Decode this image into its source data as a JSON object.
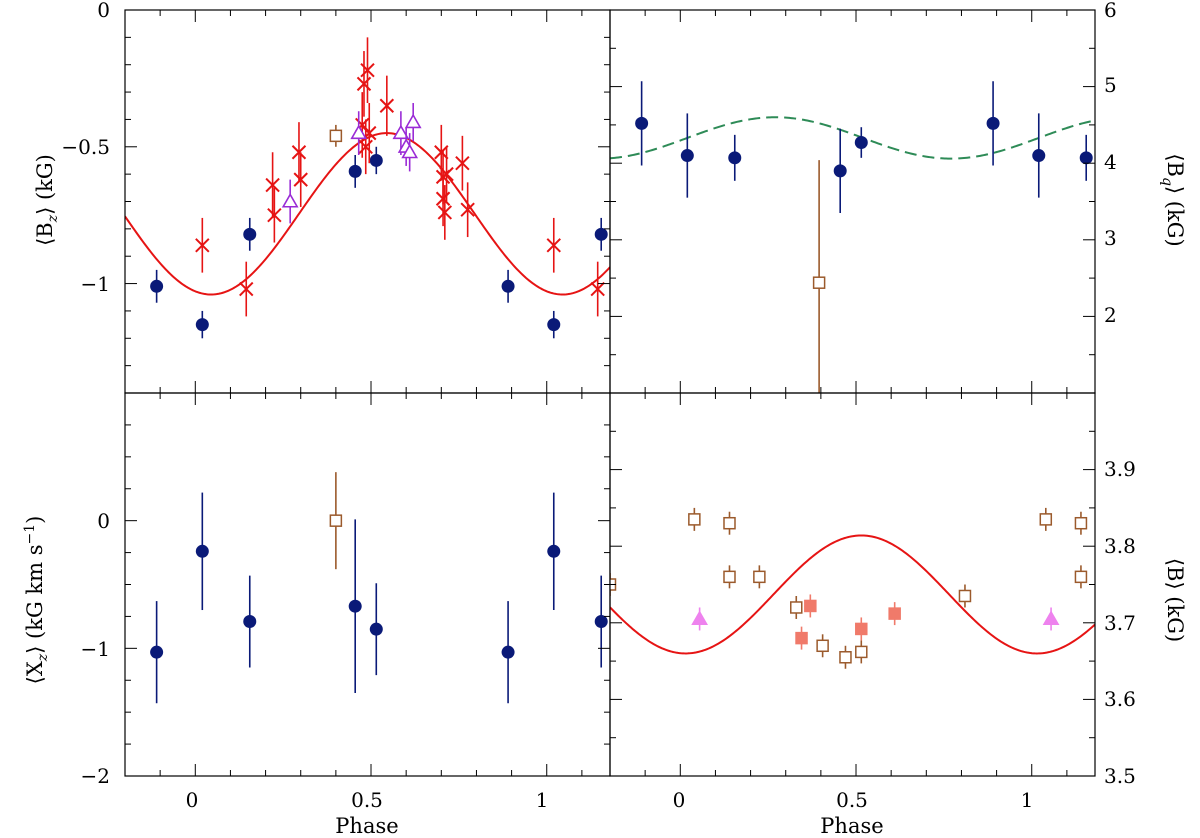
{
  "chart_data": [
    {
      "id": "bz",
      "type": "scatter",
      "ylabel_main": "⟨B",
      "ylabel_sub": "z",
      "ylabel_tail": "⟩ (kG)",
      "ylabel_side": "left",
      "xlim": [
        -0.2,
        1.18
      ],
      "ylim": [
        -1.4,
        0.0
      ],
      "yticks": [
        0,
        -0.5,
        -1
      ],
      "ytick_labels": [
        "0",
        "−0.5",
        "−1"
      ],
      "yminor_step": 0.1,
      "series": [
        {
          "name": "filled circles",
          "marker": "circle",
          "color": "#0a1a78",
          "points": [
            {
              "x": -0.11,
              "y": -1.01,
              "err": 0.06
            },
            {
              "x": 0.02,
              "y": -1.15,
              "err": 0.05
            },
            {
              "x": 0.155,
              "y": -0.82,
              "err": 0.06
            },
            {
              "x": 0.455,
              "y": -0.59,
              "err": 0.06
            },
            {
              "x": 0.515,
              "y": -0.55,
              "err": 0.05
            },
            {
              "x": 0.89,
              "y": -1.01,
              "err": 0.06
            },
            {
              "x": 1.02,
              "y": -1.15,
              "err": 0.05
            },
            {
              "x": 1.155,
              "y": -0.82,
              "err": 0.06
            }
          ]
        },
        {
          "name": "crosses",
          "marker": "cross",
          "color": "#e61414",
          "points": [
            {
              "x": 0.02,
              "y": -0.86,
              "err": 0.1
            },
            {
              "x": 0.145,
              "y": -1.02,
              "err": 0.1
            },
            {
              "x": 0.22,
              "y": -0.64,
              "err": 0.12
            },
            {
              "x": 0.225,
              "y": -0.75,
              "err": 0.1
            },
            {
              "x": 0.295,
              "y": -0.52,
              "err": 0.11
            },
            {
              "x": 0.3,
              "y": -0.62,
              "err": 0.1
            },
            {
              "x": 0.475,
              "y": -0.42,
              "err": 0.12
            },
            {
              "x": 0.48,
              "y": -0.27,
              "err": 0.12
            },
            {
              "x": 0.485,
              "y": -0.5,
              "err": 0.1
            },
            {
              "x": 0.49,
              "y": -0.22,
              "err": 0.12
            },
            {
              "x": 0.495,
              "y": -0.45,
              "err": 0.11
            },
            {
              "x": 0.545,
              "y": -0.35,
              "err": 0.11
            },
            {
              "x": 0.7,
              "y": -0.52,
              "err": 0.1
            },
            {
              "x": 0.705,
              "y": -0.61,
              "err": 0.1
            },
            {
              "x": 0.705,
              "y": -0.69,
              "err": 0.1
            },
            {
              "x": 0.71,
              "y": -0.74,
              "err": 0.1
            },
            {
              "x": 0.715,
              "y": -0.6,
              "err": 0.1
            },
            {
              "x": 0.76,
              "y": -0.56,
              "err": 0.1
            },
            {
              "x": 0.775,
              "y": -0.73,
              "err": 0.1
            },
            {
              "x": 1.02,
              "y": -0.86,
              "err": 0.1
            },
            {
              "x": 1.145,
              "y": -1.02,
              "err": 0.1
            }
          ]
        },
        {
          "name": "open triangles",
          "marker": "triangle-open",
          "color": "#9a2bd6",
          "points": [
            {
              "x": 0.27,
              "y": -0.7,
              "err": 0.08
            },
            {
              "x": 0.465,
              "y": -0.45,
              "err": 0.08
            },
            {
              "x": 0.585,
              "y": -0.45,
              "err": 0.08
            },
            {
              "x": 0.6,
              "y": -0.5,
              "err": 0.07
            },
            {
              "x": 0.61,
              "y": -0.52,
              "err": 0.07
            },
            {
              "x": 0.62,
              "y": -0.41,
              "err": 0.07
            }
          ]
        },
        {
          "name": "open squares",
          "marker": "square-open",
          "color": "#9b5a2c",
          "points": [
            {
              "x": 0.4,
              "y": -0.46,
              "err": 0.04
            }
          ]
        }
      ],
      "curve": {
        "color": "#e61414",
        "dashed": false,
        "mean": -0.745,
        "amp": 0.295,
        "phase0": 0.045
      }
    },
    {
      "id": "bq",
      "type": "scatter",
      "ylabel_main": "⟨B",
      "ylabel_sub": "q",
      "ylabel_tail": "⟩ (kG)",
      "ylabel_side": "right",
      "xlim": [
        -0.2,
        1.18
      ],
      "ylim": [
        1.0,
        6.0
      ],
      "yticks": [
        2,
        3,
        4,
        5,
        6
      ],
      "ytick_labels": [
        "2",
        "3",
        "4",
        "5",
        "6"
      ],
      "yminor_step": 0.5,
      "series": [
        {
          "name": "filled circles",
          "marker": "circle",
          "color": "#0a1a78",
          "points": [
            {
              "x": -0.11,
              "y": 4.52,
              "err": 0.55
            },
            {
              "x": 0.02,
              "y": 4.1,
              "err": 0.55
            },
            {
              "x": 0.155,
              "y": 4.07,
              "err": 0.3
            },
            {
              "x": 0.455,
              "y": 3.9,
              "err": 0.55
            },
            {
              "x": 0.515,
              "y": 4.27,
              "err": 0.2
            },
            {
              "x": 0.89,
              "y": 4.52,
              "err": 0.55
            },
            {
              "x": 1.02,
              "y": 4.1,
              "err": 0.55
            },
            {
              "x": 1.155,
              "y": 4.07,
              "err": 0.3
            }
          ]
        },
        {
          "name": "open squares",
          "marker": "square-open",
          "color": "#9b5a2c",
          "points": [
            {
              "x": 0.395,
              "y": 2.44,
              "err": 1.6
            }
          ]
        }
      ],
      "curve": {
        "color": "#2e8b57",
        "dashed": true,
        "mean": 4.33,
        "amp": 0.27,
        "phase0": 0.77
      }
    },
    {
      "id": "xz",
      "type": "scatter",
      "ylabel_main": "⟨X",
      "ylabel_sub": "z",
      "ylabel_tail": "⟩ (kG km s",
      "ylabel_sup": "−1",
      "ylabel_end": ")",
      "ylabel_side": "left",
      "xlim": [
        -0.2,
        1.18
      ],
      "ylim": [
        -2.0,
        1.0
      ],
      "yticks": [
        0,
        -1,
        -2
      ],
      "ytick_labels": [
        "0",
        "−1",
        "−2"
      ],
      "yminor_step": 0.25,
      "series": [
        {
          "name": "filled circles",
          "marker": "circle",
          "color": "#0a1a78",
          "points": [
            {
              "x": -0.11,
              "y": -1.03,
              "err": 0.4
            },
            {
              "x": 0.02,
              "y": -0.24,
              "err": 0.46
            },
            {
              "x": 0.155,
              "y": -0.79,
              "err": 0.36
            },
            {
              "x": 0.455,
              "y": -0.67,
              "err": 0.68
            },
            {
              "x": 0.515,
              "y": -0.85,
              "err": 0.36
            },
            {
              "x": 0.89,
              "y": -1.03,
              "err": 0.4
            },
            {
              "x": 1.02,
              "y": -0.24,
              "err": 0.46
            },
            {
              "x": 1.155,
              "y": -0.79,
              "err": 0.36
            }
          ]
        },
        {
          "name": "open squares",
          "marker": "square-open",
          "color": "#9b5a2c",
          "points": [
            {
              "x": 0.4,
              "y": 0.0,
              "err": 0.38
            }
          ]
        }
      ]
    },
    {
      "id": "bmod",
      "type": "scatter",
      "ylabel_main": "⟨B⟩ (kG)",
      "ylabel_side": "right",
      "xlim": [
        -0.2,
        1.18
      ],
      "ylim": [
        3.5,
        4.0
      ],
      "yticks": [
        3.5,
        3.6,
        3.7,
        3.8,
        3.9
      ],
      "ytick_labels": [
        "3.5",
        "3.6",
        "3.7",
        "3.8",
        "3.9"
      ],
      "yminor_step": 0.05,
      "series": [
        {
          "name": "open squares",
          "marker": "square-open",
          "color": "#9b5a2c",
          "points": [
            {
              "x": -0.2,
              "y": 3.75,
              "err": 0.015
            },
            {
              "x": 0.04,
              "y": 3.835,
              "err": 0.015
            },
            {
              "x": 0.14,
              "y": 3.83,
              "err": 0.015
            },
            {
              "x": 0.14,
              "y": 3.76,
              "err": 0.015
            },
            {
              "x": 0.225,
              "y": 3.76,
              "err": 0.015
            },
            {
              "x": 0.33,
              "y": 3.72,
              "err": 0.015
            },
            {
              "x": 0.405,
              "y": 3.67,
              "err": 0.015
            },
            {
              "x": 0.47,
              "y": 3.655,
              "err": 0.015
            },
            {
              "x": 0.515,
              "y": 3.662,
              "err": 0.015
            },
            {
              "x": 0.81,
              "y": 3.735,
              "err": 0.015
            },
            {
              "x": 1.04,
              "y": 3.835,
              "err": 0.015
            },
            {
              "x": 1.14,
              "y": 3.83,
              "err": 0.015
            },
            {
              "x": 1.14,
              "y": 3.76,
              "err": 0.015
            }
          ]
        },
        {
          "name": "filled squares",
          "marker": "square-filled",
          "color": "#f07a6a",
          "points": [
            {
              "x": 0.345,
              "y": 3.68,
              "err": 0.015
            },
            {
              "x": 0.37,
              "y": 3.722,
              "err": 0.015
            },
            {
              "x": 0.515,
              "y": 3.692,
              "err": 0.015
            },
            {
              "x": 0.61,
              "y": 3.712,
              "err": 0.015
            }
          ]
        },
        {
          "name": "filled triangles",
          "marker": "triangle-filled",
          "color": "#ee82ee",
          "points": [
            {
              "x": 0.055,
              "y": 3.705,
              "err": 0.015
            },
            {
              "x": 1.055,
              "y": 3.705,
              "err": 0.015
            }
          ]
        }
      ],
      "curve": {
        "color": "#e61414",
        "dashed": false,
        "mean": 3.737,
        "amp": 0.077,
        "phase0": 0.015
      }
    }
  ],
  "x_axis": {
    "label": "Phase",
    "ticks": [
      0,
      0.5,
      1
    ],
    "tick_labels": [
      "0",
      "0.5",
      "1"
    ],
    "minor_step": 0.1
  }
}
